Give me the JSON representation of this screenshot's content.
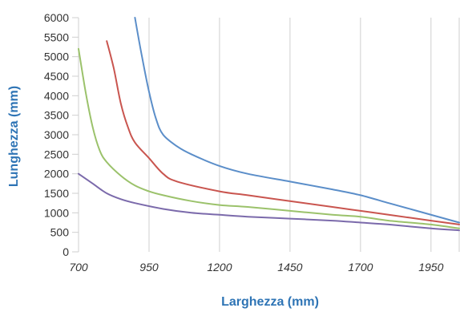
{
  "chart_data": {
    "type": "line",
    "xlabel": "Larghezza (mm)",
    "ylabel": "Lunghezza (mm)",
    "xlim": [
      700,
      2050
    ],
    "ylim": [
      0,
      6000
    ],
    "x_ticks": [
      700,
      950,
      1200,
      1450,
      1700,
      1950
    ],
    "y_ticks": [
      0,
      500,
      1000,
      1500,
      2000,
      2500,
      3000,
      3500,
      4000,
      4500,
      5000,
      5500,
      6000
    ],
    "grid": "vertical",
    "label_color": "#2e74b5",
    "series": [
      {
        "color": "#5b8ec9",
        "points": [
          [
            900,
            6000
          ],
          [
            925,
            5000
          ],
          [
            950,
            4100
          ],
          [
            975,
            3400
          ],
          [
            1000,
            3000
          ],
          [
            1050,
            2700
          ],
          [
            1100,
            2500
          ],
          [
            1200,
            2200
          ],
          [
            1300,
            2000
          ],
          [
            1450,
            1800
          ],
          [
            1600,
            1600
          ],
          [
            1700,
            1450
          ],
          [
            1800,
            1250
          ],
          [
            1900,
            1050
          ],
          [
            2050,
            750
          ]
        ]
      },
      {
        "color": "#c9554f",
        "points": [
          [
            800,
            5400
          ],
          [
            825,
            4700
          ],
          [
            850,
            3800
          ],
          [
            875,
            3200
          ],
          [
            900,
            2800
          ],
          [
            950,
            2400
          ],
          [
            1000,
            2000
          ],
          [
            1050,
            1800
          ],
          [
            1200,
            1550
          ],
          [
            1300,
            1450
          ],
          [
            1450,
            1300
          ],
          [
            1600,
            1150
          ],
          [
            1700,
            1050
          ],
          [
            1800,
            950
          ],
          [
            1950,
            800
          ],
          [
            2050,
            700
          ]
        ]
      },
      {
        "color": "#9bc26b",
        "points": [
          [
            700,
            5200
          ],
          [
            725,
            4100
          ],
          [
            750,
            3200
          ],
          [
            775,
            2600
          ],
          [
            800,
            2300
          ],
          [
            850,
            1950
          ],
          [
            900,
            1700
          ],
          [
            950,
            1550
          ],
          [
            1000,
            1450
          ],
          [
            1100,
            1300
          ],
          [
            1200,
            1200
          ],
          [
            1300,
            1150
          ],
          [
            1450,
            1050
          ],
          [
            1600,
            950
          ],
          [
            1700,
            900
          ],
          [
            1800,
            800
          ],
          [
            1950,
            700
          ],
          [
            2050,
            600
          ]
        ]
      },
      {
        "color": "#7b6aab",
        "points": [
          [
            700,
            2000
          ],
          [
            750,
            1750
          ],
          [
            800,
            1500
          ],
          [
            850,
            1350
          ],
          [
            900,
            1250
          ],
          [
            1000,
            1100
          ],
          [
            1100,
            1000
          ],
          [
            1200,
            950
          ],
          [
            1300,
            900
          ],
          [
            1450,
            850
          ],
          [
            1600,
            800
          ],
          [
            1700,
            750
          ],
          [
            1800,
            700
          ],
          [
            1950,
            600
          ],
          [
            2050,
            550
          ]
        ]
      }
    ]
  }
}
